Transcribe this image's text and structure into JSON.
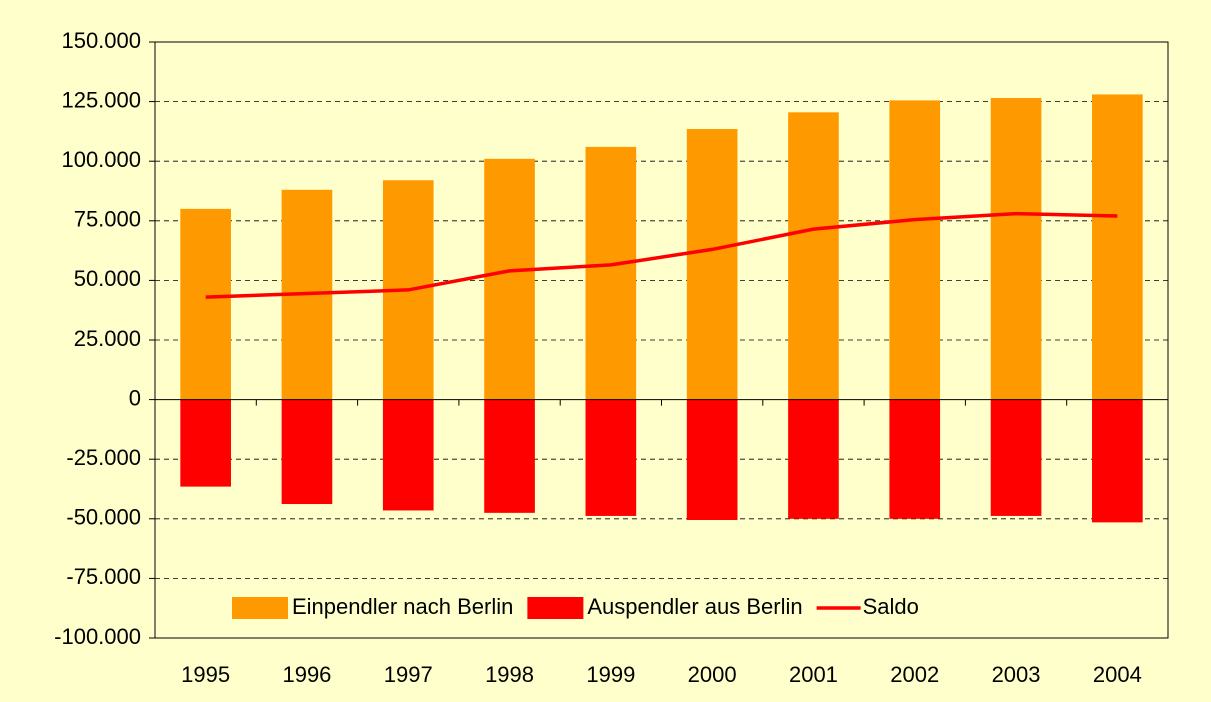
{
  "chart_data": {
    "type": "bar",
    "categories": [
      "1995",
      "1996",
      "1997",
      "1998",
      "1999",
      "2000",
      "2001",
      "2002",
      "2003",
      "2004"
    ],
    "series": [
      {
        "name": "Einpendler nach Berlin",
        "color": "#ff9900",
        "type": "bar",
        "values": [
          80000,
          88000,
          92000,
          101000,
          106000,
          113500,
          120500,
          125500,
          126500,
          128000
        ]
      },
      {
        "name": "Auspendler aus Berlin",
        "color": "#ff0000",
        "type": "bar",
        "values": [
          -36500,
          -43800,
          -46500,
          -47500,
          -48800,
          -50500,
          -50000,
          -50000,
          -48800,
          -51500
        ]
      },
      {
        "name": "Saldo",
        "color": "#ff0000",
        "type": "line",
        "values": [
          43000,
          44500,
          46000,
          54000,
          56500,
          63000,
          71500,
          75500,
          78000,
          77000
        ]
      }
    ],
    "ylim": [
      -100000,
      150000
    ],
    "yticks": [
      {
        "value": -100000,
        "label": "-100.000"
      },
      {
        "value": -75000,
        "label": "-75.000"
      },
      {
        "value": -50000,
        "label": "-50.000"
      },
      {
        "value": -25000,
        "label": "-25.000"
      },
      0,
      {
        "value": 25000,
        "label": "25.000"
      },
      {
        "value": 50000,
        "label": "50.000"
      },
      {
        "value": 75000,
        "label": "75.000"
      },
      {
        "value": 100000,
        "label": "100.000"
      },
      {
        "value": 125000,
        "label": "125.000"
      },
      {
        "value": 150000,
        "label": "150.000"
      }
    ],
    "grid": true,
    "legend": "bottom"
  }
}
